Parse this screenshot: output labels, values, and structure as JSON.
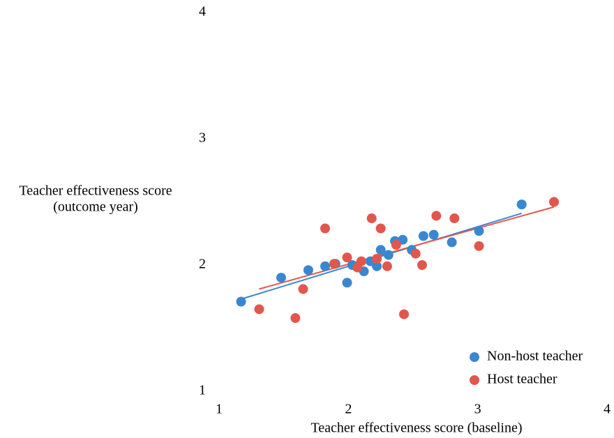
{
  "chart_data": {
    "type": "scatter",
    "x_label": "Teacher effectiveness score (baseline)",
    "y_label": [
      "Teacher effectiveness score",
      "(outcome year)"
    ],
    "xlim": [
      1,
      4
    ],
    "xticks": [
      1,
      2,
      3,
      4
    ],
    "ylim": [
      1,
      4
    ],
    "yticks": [
      1,
      2,
      3,
      4
    ],
    "grid": false,
    "legend": "bottom-right",
    "series": [
      {
        "name": "Non-host teacher",
        "color": "#3a87d0",
        "x": [
          1.17,
          1.48,
          1.69,
          1.82,
          1.9,
          1.99,
          2.03,
          2.12,
          2.17,
          2.22,
          2.25,
          2.31,
          2.36,
          2.42,
          2.49,
          2.58,
          2.66,
          2.8,
          3.01,
          3.34
        ],
        "values": [
          1.71,
          1.9,
          1.96,
          1.99,
          2.01,
          1.86,
          2.0,
          1.95,
          2.03,
          1.99,
          2.12,
          2.08,
          2.19,
          2.2,
          2.12,
          2.23,
          2.24,
          2.18,
          2.27,
          2.48
        ],
        "trend": {
          "x": [
            1.17,
            3.34
          ],
          "values": [
            1.73,
            2.41
          ]
        }
      },
      {
        "name": "Host teacher",
        "color": "#e2574c",
        "x": [
          1.31,
          1.59,
          1.65,
          1.82,
          1.89,
          1.99,
          2.07,
          2.1,
          2.18,
          2.22,
          2.25,
          2.3,
          2.37,
          2.43,
          2.52,
          2.57,
          2.68,
          2.82,
          3.01,
          3.59
        ],
        "values": [
          1.65,
          1.58,
          1.81,
          2.29,
          2.01,
          2.06,
          1.98,
          2.03,
          2.37,
          2.05,
          2.29,
          1.99,
          2.16,
          1.61,
          2.09,
          2.0,
          2.39,
          2.37,
          2.15,
          2.5
        ],
        "trend": {
          "x": [
            1.31,
            3.59
          ],
          "values": [
            1.81,
            2.46
          ]
        }
      }
    ]
  }
}
